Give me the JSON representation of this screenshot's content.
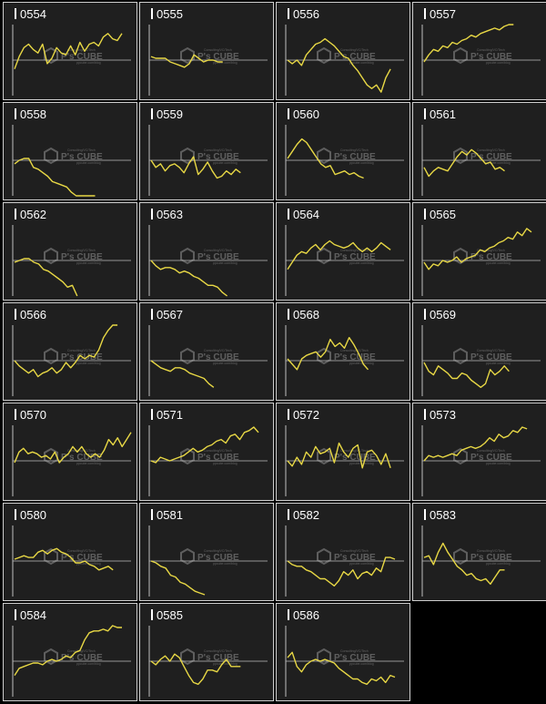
{
  "watermark": {
    "brand": "P's CUBE",
    "tagline": "Consulting/VC/Tech",
    "sub": "ppcube.com/blog"
  },
  "colors": {
    "line": "#e8d845",
    "baseline": "#bfbfbf",
    "axis": "#bfbfbf",
    "panel_bg": "#1f1f1f",
    "label": "#ffffff"
  },
  "chart_data": [
    {
      "type": "line",
      "title": "0554",
      "values": [
        -5,
        2,
        7,
        9,
        6,
        4,
        9,
        -2,
        1,
        7,
        4,
        3,
        8,
        3,
        10,
        5,
        9,
        10,
        8,
        13,
        15,
        12,
        11,
        15
      ],
      "baseline": 0,
      "ylim": [
        -20,
        20
      ]
    },
    {
      "type": "line",
      "title": "0555",
      "values": [
        2,
        1,
        1,
        1,
        -1,
        -2,
        -3,
        -4,
        -2,
        3,
        1,
        -1,
        0,
        0,
        -1,
        -1
      ],
      "baseline": 0,
      "ylim": [
        -20,
        20
      ]
    },
    {
      "type": "line",
      "title": "0556",
      "values": [
        0,
        -2,
        0,
        -3,
        3,
        6,
        9,
        10,
        12,
        10,
        8,
        5,
        2,
        1,
        -3,
        -6,
        -10,
        -14,
        -16,
        -14,
        -18,
        -10,
        -5
      ],
      "baseline": 0,
      "ylim": [
        -20,
        20
      ]
    },
    {
      "type": "line",
      "title": "0557",
      "values": [
        -1,
        3,
        6,
        5,
        8,
        7,
        10,
        9,
        11,
        12,
        14,
        13,
        15,
        16,
        17,
        18,
        17,
        19,
        21,
        20
      ],
      "baseline": 0,
      "ylim": [
        -20,
        20
      ]
    },
    {
      "type": "line",
      "title": "0558",
      "values": [
        -2,
        0,
        1,
        1,
        -4,
        -5,
        -7,
        -9,
        -12,
        -13,
        -14,
        -15,
        -18,
        -21,
        -22,
        -24,
        -20,
        -22
      ],
      "baseline": 0,
      "ylim": [
        -20,
        20
      ]
    },
    {
      "type": "line",
      "title": "0559",
      "values": [
        0,
        -4,
        -2,
        -6,
        -3,
        -2,
        -4,
        -7,
        -2,
        2,
        -8,
        -5,
        -1,
        -6,
        -10,
        -9,
        -6,
        -8,
        -5,
        -7
      ],
      "baseline": 0,
      "ylim": [
        -20,
        20
      ]
    },
    {
      "type": "line",
      "title": "0560",
      "values": [
        1,
        5,
        9,
        12,
        10,
        6,
        2,
        -2,
        -4,
        -3,
        -8,
        -7,
        -6,
        -8,
        -7,
        -9,
        -10
      ],
      "baseline": 0,
      "ylim": [
        -20,
        20
      ]
    },
    {
      "type": "line",
      "title": "0561",
      "values": [
        -4,
        -9,
        -6,
        -4,
        -5,
        -6,
        -2,
        2,
        5,
        3,
        6,
        4,
        1,
        -2,
        -1,
        -5,
        -4,
        -6
      ],
      "baseline": 0,
      "ylim": [
        -20,
        20
      ]
    },
    {
      "type": "line",
      "title": "0562",
      "values": [
        -1,
        0,
        1,
        1,
        -1,
        -2,
        -5,
        -6,
        -8,
        -10,
        -12,
        -15,
        -14,
        -20
      ],
      "baseline": 0,
      "ylim": [
        -20,
        20
      ]
    },
    {
      "type": "line",
      "title": "0563",
      "values": [
        0,
        -3,
        -5,
        -4,
        -4,
        -5,
        -7,
        -6,
        -7,
        -9,
        -10,
        -12,
        -14,
        -14,
        -15,
        -18,
        -20
      ],
      "baseline": 0,
      "ylim": [
        -20,
        20
      ]
    },
    {
      "type": "line",
      "title": "0564",
      "values": [
        -5,
        -1,
        3,
        5,
        4,
        7,
        9,
        6,
        9,
        11,
        9,
        8,
        7,
        8,
        10,
        7,
        5,
        7,
        5,
        7,
        10,
        8,
        6
      ],
      "baseline": 0,
      "ylim": [
        -20,
        20
      ]
    },
    {
      "type": "line",
      "title": "0565",
      "values": [
        -1,
        -5,
        -2,
        -3,
        0,
        -1,
        0,
        2,
        -1,
        1,
        2,
        3,
        6,
        5,
        7,
        8,
        10,
        11,
        13,
        12,
        16,
        14,
        18,
        16
      ],
      "baseline": 0,
      "ylim": [
        -20,
        20
      ]
    },
    {
      "type": "line",
      "title": "0566",
      "values": [
        0,
        -3,
        -5,
        -7,
        -5,
        -9,
        -7,
        -6,
        -4,
        -7,
        -5,
        -1,
        -4,
        -1,
        3,
        1,
        3,
        2,
        6,
        13,
        17,
        22,
        21
      ],
      "baseline": 0,
      "ylim": [
        -20,
        20
      ]
    },
    {
      "type": "line",
      "title": "0567",
      "values": [
        0,
        -2,
        -4,
        -5,
        -6,
        -4,
        -4,
        -5,
        -7,
        -8,
        -9,
        -10,
        -13,
        -15
      ],
      "baseline": 0,
      "ylim": [
        -20,
        20
      ]
    },
    {
      "type": "line",
      "title": "0568",
      "values": [
        1,
        -2,
        -5,
        1,
        3,
        4,
        5,
        2,
        5,
        12,
        8,
        10,
        7,
        13,
        9,
        4,
        -2,
        -5
      ],
      "baseline": 0,
      "ylim": [
        -20,
        20
      ]
    },
    {
      "type": "line",
      "title": "0569",
      "values": [
        -1,
        -6,
        -8,
        -3,
        -5,
        -7,
        -10,
        -10,
        -7,
        -8,
        -11,
        -13,
        -15,
        -13,
        -5,
        -8,
        -6,
        -3,
        -6
      ],
      "baseline": 0,
      "ylim": [
        -20,
        20
      ]
    },
    {
      "type": "line",
      "title": "0570",
      "values": [
        -1,
        5,
        7,
        4,
        5,
        4,
        2,
        3,
        1,
        5,
        -1,
        2,
        4,
        8,
        5,
        8,
        4,
        2,
        4,
        2,
        6,
        12,
        9,
        13,
        8,
        12,
        16
      ],
      "baseline": 0,
      "ylim": [
        -20,
        20
      ]
    },
    {
      "type": "line",
      "title": "0571",
      "values": [
        0,
        -1,
        2,
        1,
        0,
        1,
        2,
        3,
        5,
        7,
        5,
        6,
        8,
        9,
        11,
        12,
        10,
        14,
        15,
        12,
        16,
        17,
        19,
        16
      ],
      "baseline": 0,
      "ylim": [
        -20,
        20
      ]
    },
    {
      "type": "line",
      "title": "0572",
      "values": [
        0,
        -3,
        2,
        -2,
        5,
        2,
        8,
        4,
        5,
        7,
        -1,
        10,
        5,
        2,
        7,
        9,
        -4,
        5,
        6,
        3,
        -2,
        4,
        -4
      ],
      "baseline": 0,
      "ylim": [
        -20,
        20
      ]
    },
    {
      "type": "line",
      "title": "0573",
      "values": [
        0,
        3,
        2,
        3,
        2,
        3,
        4,
        3,
        6,
        7,
        8,
        7,
        8,
        10,
        13,
        11,
        15,
        13,
        14,
        17,
        16,
        19,
        18
      ],
      "baseline": 0,
      "ylim": [
        -20,
        20
      ]
    },
    {
      "type": "line",
      "title": "0580",
      "values": [
        1,
        2,
        3,
        2,
        2,
        5,
        6,
        4,
        6,
        7,
        5,
        4,
        2,
        -1,
        -1,
        0,
        -2,
        -3,
        -5,
        -4,
        -3,
        -5
      ],
      "baseline": 0,
      "ylim": [
        -20,
        20
      ]
    },
    {
      "type": "line",
      "title": "0581",
      "values": [
        0,
        -1,
        -3,
        -4,
        -8,
        -9,
        -12,
        -13,
        -15,
        -17,
        -18,
        -19
      ],
      "baseline": 0,
      "ylim": [
        -20,
        20
      ]
    },
    {
      "type": "line",
      "title": "0582",
      "values": [
        0,
        -2,
        -3,
        -3,
        -5,
        -6,
        -8,
        -10,
        -10,
        -12,
        -14,
        -11,
        -6,
        -8,
        -5,
        -10,
        -7,
        -6,
        -8,
        -4,
        -6,
        2,
        2,
        1
      ],
      "baseline": 0,
      "ylim": [
        -20,
        20
      ]
    },
    {
      "type": "line",
      "title": "0583",
      "values": [
        2,
        3,
        -2,
        5,
        10,
        5,
        1,
        -3,
        -5,
        -8,
        -7,
        -10,
        -11,
        -10,
        -13,
        -9,
        -5,
        -5
      ],
      "baseline": 0,
      "ylim": [
        -20,
        20
      ]
    },
    {
      "type": "line",
      "title": "0584",
      "values": [
        -8,
        -4,
        -3,
        -2,
        -1,
        -1,
        -2,
        0,
        1,
        0,
        1,
        3,
        2,
        5,
        6,
        12,
        16,
        17,
        17,
        18,
        17,
        20,
        19,
        19
      ],
      "baseline": 0,
      "ylim": [
        -20,
        20
      ]
    },
    {
      "type": "line",
      "title": "0585",
      "values": [
        0,
        -2,
        1,
        3,
        0,
        4,
        2,
        -3,
        -8,
        -12,
        -13,
        -10,
        -5,
        -5,
        -6,
        -2,
        1,
        -3,
        -3,
        -3
      ],
      "baseline": 0,
      "ylim": [
        -20,
        20
      ]
    },
    {
      "type": "line",
      "title": "0586",
      "values": [
        2,
        5,
        -3,
        -6,
        -2,
        0,
        1,
        0,
        1,
        0,
        -1,
        -4,
        -6,
        -8,
        -10,
        -10,
        -12,
        -13,
        -10,
        -11,
        -9,
        -12,
        -8,
        -9
      ],
      "baseline": 0,
      "ylim": [
        -20,
        20
      ]
    }
  ]
}
